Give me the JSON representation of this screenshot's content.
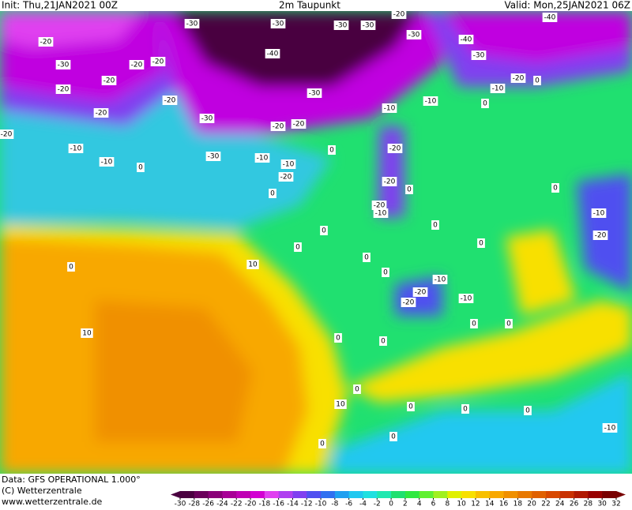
{
  "header": {
    "init": "Init: Thu,21JAN2021 00Z",
    "title": "2m Taupunkt",
    "valid": "Valid: Mon,25JAN2021 06Z"
  },
  "footer": {
    "data": "Data: GFS OPERATIONAL 1.000°",
    "copyright": "(C) Wetterzentrale",
    "url": "www.wetterzentrale.de"
  },
  "colorbar": {
    "ticks": [
      -30,
      -28,
      -26,
      -24,
      -22,
      -20,
      -18,
      -16,
      -14,
      -12,
      -10,
      -8,
      -6,
      -4,
      -2,
      0,
      2,
      4,
      6,
      8,
      10,
      12,
      14,
      16,
      18,
      20,
      22,
      24,
      26,
      28,
      30,
      32
    ],
    "colors": [
      "#4a0040",
      "#6a005a",
      "#8a0078",
      "#a80096",
      "#c000b4",
      "#d200d2",
      "#e040f0",
      "#b040f0",
      "#8040f0",
      "#5050f0",
      "#3070f0",
      "#20a0f0",
      "#20c8f0",
      "#20e0e0",
      "#20e8b0",
      "#20e070",
      "#30e840",
      "#60f030",
      "#a0f020",
      "#e0f000",
      "#f8e000",
      "#f8c000",
      "#f8a800",
      "#f09000",
      "#e87800",
      "#e06000",
      "#d84800",
      "#c83000",
      "#b01800",
      "#980000",
      "#780000"
    ]
  },
  "contour_labels": [
    "-20",
    "-30",
    "-20",
    "-20",
    "-20",
    "-20",
    "-20",
    "-20",
    "-20",
    "-10",
    "-10",
    "0",
    "-30",
    "-30",
    "-40",
    "-30",
    "-30",
    "-20",
    "-20",
    "-30",
    "-10",
    "-10",
    "-20",
    "0",
    "0",
    "-30",
    "-30",
    "-20",
    "-30",
    "-40",
    "-30",
    "-40",
    "-20",
    "0",
    "-10",
    "0",
    "-10",
    "-10",
    "-20",
    "-20",
    "-20",
    "-10",
    "0",
    "0",
    "0",
    "0",
    "0",
    "0",
    "0",
    "0",
    "-10",
    "-20",
    "10",
    "0",
    "10",
    "-10",
    "-20",
    "-20",
    "-10",
    "0",
    "0",
    "0",
    "0",
    "10",
    "0",
    "0",
    "0",
    "-10",
    "0",
    "0",
    "0"
  ]
}
